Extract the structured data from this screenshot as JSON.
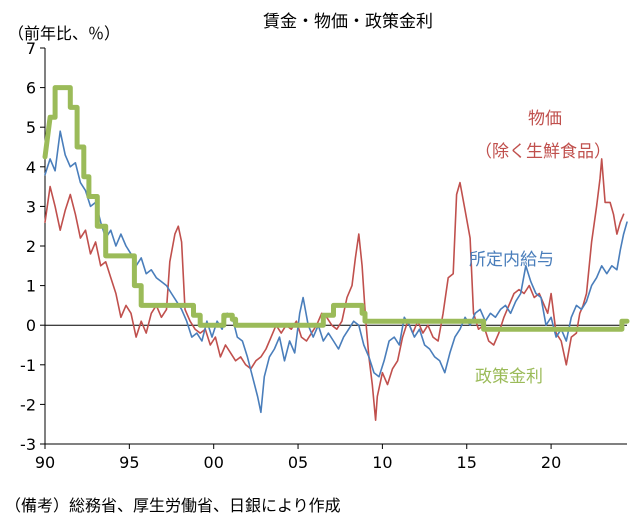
{
  "chart_data": {
    "type": "line",
    "title": "賃金・物価・政策金利",
    "y_unit_label": "（前年比、％）",
    "ylim": [
      -3,
      7
    ],
    "y_ticks": [
      "-3",
      "-2",
      "-1",
      "0",
      "1",
      "2",
      "3",
      "4",
      "5",
      "6",
      "7"
    ],
    "x_ticks": [
      {
        "x": 1990,
        "label": "90"
      },
      {
        "x": 1995,
        "label": "95"
      },
      {
        "x": 2000,
        "label": "00"
      },
      {
        "x": 2005,
        "label": "05"
      },
      {
        "x": 2010,
        "label": "10"
      },
      {
        "x": 2015,
        "label": "15"
      },
      {
        "x": 2020,
        "label": "20"
      }
    ],
    "xlim": [
      1990,
      2024.5
    ],
    "grid": false,
    "source": "（備考）総務省、厚生労働省、日銀により作成",
    "series": [
      {
        "name": "物価（除く生鮮食品）",
        "label_lines": [
          "物価",
          "（除く生鮮食品）"
        ],
        "color": "#c0504d",
        "stroke_width": 1.6,
        "points": [
          [
            1990.0,
            2.6
          ],
          [
            1990.3,
            3.5
          ],
          [
            1990.6,
            3.0
          ],
          [
            1990.9,
            2.4
          ],
          [
            1991.2,
            2.9
          ],
          [
            1991.5,
            3.3
          ],
          [
            1991.8,
            2.8
          ],
          [
            1992.1,
            2.2
          ],
          [
            1992.4,
            2.4
          ],
          [
            1992.7,
            1.8
          ],
          [
            1993.0,
            2.1
          ],
          [
            1993.3,
            1.5
          ],
          [
            1993.6,
            1.6
          ],
          [
            1993.9,
            1.2
          ],
          [
            1994.2,
            0.8
          ],
          [
            1994.5,
            0.2
          ],
          [
            1994.8,
            0.5
          ],
          [
            1995.1,
            0.3
          ],
          [
            1995.4,
            -0.3
          ],
          [
            1995.7,
            0.1
          ],
          [
            1996.0,
            -0.2
          ],
          [
            1996.3,
            0.3
          ],
          [
            1996.6,
            0.5
          ],
          [
            1996.9,
            0.2
          ],
          [
            1997.2,
            0.4
          ],
          [
            1997.4,
            1.6
          ],
          [
            1997.7,
            2.3
          ],
          [
            1997.9,
            2.5
          ],
          [
            1998.1,
            2.1
          ],
          [
            1998.3,
            0.4
          ],
          [
            1998.6,
            0.1
          ],
          [
            1998.9,
            -0.1
          ],
          [
            1999.2,
            -0.2
          ],
          [
            1999.5,
            -0.1
          ],
          [
            1999.8,
            -0.5
          ],
          [
            2000.1,
            -0.3
          ],
          [
            2000.4,
            -0.8
          ],
          [
            2000.7,
            -0.5
          ],
          [
            2001.0,
            -0.7
          ],
          [
            2001.3,
            -0.9
          ],
          [
            2001.6,
            -0.8
          ],
          [
            2001.9,
            -1.0
          ],
          [
            2002.2,
            -1.1
          ],
          [
            2002.5,
            -0.9
          ],
          [
            2002.8,
            -0.8
          ],
          [
            2003.1,
            -0.6
          ],
          [
            2003.4,
            -0.3
          ],
          [
            2003.7,
            0.0
          ],
          [
            2004.0,
            -0.2
          ],
          [
            2004.3,
            0.0
          ],
          [
            2004.6,
            -0.1
          ],
          [
            2004.9,
            0.1
          ],
          [
            2005.2,
            -0.3
          ],
          [
            2005.5,
            -0.4
          ],
          [
            2005.8,
            -0.2
          ],
          [
            2006.1,
            0.0
          ],
          [
            2006.4,
            0.3
          ],
          [
            2006.7,
            0.2
          ],
          [
            2007.0,
            0.0
          ],
          [
            2007.3,
            -0.1
          ],
          [
            2007.6,
            0.1
          ],
          [
            2007.9,
            0.7
          ],
          [
            2008.2,
            1.0
          ],
          [
            2008.4,
            1.7
          ],
          [
            2008.6,
            2.3
          ],
          [
            2008.8,
            1.5
          ],
          [
            2009.0,
            0.2
          ],
          [
            2009.2,
            -0.8
          ],
          [
            2009.4,
            -1.5
          ],
          [
            2009.6,
            -2.4
          ],
          [
            2009.7,
            -1.8
          ],
          [
            2010.0,
            -1.2
          ],
          [
            2010.3,
            -1.5
          ],
          [
            2010.6,
            -1.1
          ],
          [
            2010.9,
            -0.9
          ],
          [
            2011.2,
            -0.3
          ],
          [
            2011.5,
            0.1
          ],
          [
            2011.8,
            -0.2
          ],
          [
            2012.1,
            0.1
          ],
          [
            2012.4,
            -0.2
          ],
          [
            2012.7,
            0.0
          ],
          [
            2013.0,
            -0.3
          ],
          [
            2013.3,
            -0.4
          ],
          [
            2013.6,
            0.3
          ],
          [
            2013.9,
            1.2
          ],
          [
            2014.2,
            1.3
          ],
          [
            2014.4,
            3.3
          ],
          [
            2014.6,
            3.6
          ],
          [
            2014.9,
            2.9
          ],
          [
            2015.2,
            2.2
          ],
          [
            2015.4,
            0.3
          ],
          [
            2015.7,
            -0.1
          ],
          [
            2016.0,
            0.0
          ],
          [
            2016.3,
            -0.4
          ],
          [
            2016.6,
            -0.5
          ],
          [
            2016.9,
            -0.2
          ],
          [
            2017.2,
            0.2
          ],
          [
            2017.5,
            0.5
          ],
          [
            2017.8,
            0.8
          ],
          [
            2018.1,
            0.9
          ],
          [
            2018.4,
            0.8
          ],
          [
            2018.7,
            1.0
          ],
          [
            2019.0,
            0.7
          ],
          [
            2019.3,
            0.8
          ],
          [
            2019.6,
            0.5
          ],
          [
            2019.8,
            0.3
          ],
          [
            2020.0,
            0.8
          ],
          [
            2020.3,
            -0.2
          ],
          [
            2020.6,
            -0.4
          ],
          [
            2020.9,
            -1.0
          ],
          [
            2021.2,
            -0.3
          ],
          [
            2021.5,
            -0.2
          ],
          [
            2021.7,
            0.3
          ],
          [
            2021.9,
            0.5
          ],
          [
            2022.1,
            0.8
          ],
          [
            2022.4,
            2.1
          ],
          [
            2022.7,
            3.0
          ],
          [
            2022.9,
            3.7
          ],
          [
            2023.0,
            4.2
          ],
          [
            2023.2,
            3.1
          ],
          [
            2023.5,
            3.1
          ],
          [
            2023.7,
            2.8
          ],
          [
            2023.9,
            2.3
          ],
          [
            2024.1,
            2.6
          ],
          [
            2024.3,
            2.8
          ]
        ]
      },
      {
        "name": "所定内給与",
        "label_lines": [
          "所定内給与"
        ],
        "color": "#4a7ebb",
        "stroke_width": 1.6,
        "points": [
          [
            1990.0,
            3.8
          ],
          [
            1990.3,
            4.2
          ],
          [
            1990.6,
            3.9
          ],
          [
            1990.9,
            4.9
          ],
          [
            1991.2,
            4.3
          ],
          [
            1991.5,
            4.0
          ],
          [
            1991.8,
            4.1
          ],
          [
            1992.1,
            3.6
          ],
          [
            1992.4,
            3.4
          ],
          [
            1992.7,
            3.0
          ],
          [
            1993.0,
            3.1
          ],
          [
            1993.3,
            2.6
          ],
          [
            1993.6,
            2.2
          ],
          [
            1993.9,
            2.4
          ],
          [
            1994.2,
            2.0
          ],
          [
            1994.5,
            2.3
          ],
          [
            1994.8,
            2.0
          ],
          [
            1995.1,
            1.8
          ],
          [
            1995.4,
            1.5
          ],
          [
            1995.7,
            1.7
          ],
          [
            1996.0,
            1.3
          ],
          [
            1996.3,
            1.4
          ],
          [
            1996.6,
            1.2
          ],
          [
            1996.9,
            1.1
          ],
          [
            1997.2,
            1.0
          ],
          [
            1997.5,
            0.8
          ],
          [
            1997.8,
            0.6
          ],
          [
            1998.1,
            0.4
          ],
          [
            1998.4,
            0.1
          ],
          [
            1998.7,
            -0.3
          ],
          [
            1999.0,
            -0.2
          ],
          [
            1999.3,
            -0.4
          ],
          [
            1999.6,
            0.1
          ],
          [
            1999.9,
            -0.3
          ],
          [
            2000.2,
            0.1
          ],
          [
            2000.5,
            -0.1
          ],
          [
            2000.8,
            0.3
          ],
          [
            2001.1,
            0.2
          ],
          [
            2001.4,
            -0.3
          ],
          [
            2001.7,
            -0.4
          ],
          [
            2002.0,
            -0.8
          ],
          [
            2002.3,
            -1.3
          ],
          [
            2002.6,
            -1.8
          ],
          [
            2002.8,
            -2.2
          ],
          [
            2003.0,
            -1.3
          ],
          [
            2003.3,
            -0.8
          ],
          [
            2003.6,
            -0.6
          ],
          [
            2003.9,
            -0.3
          ],
          [
            2004.2,
            -0.9
          ],
          [
            2004.5,
            -0.4
          ],
          [
            2004.8,
            -0.7
          ],
          [
            2005.1,
            0.3
          ],
          [
            2005.3,
            0.7
          ],
          [
            2005.6,
            0.0
          ],
          [
            2005.9,
            -0.3
          ],
          [
            2006.2,
            0.0
          ],
          [
            2006.5,
            -0.4
          ],
          [
            2006.8,
            -0.2
          ],
          [
            2007.1,
            -0.4
          ],
          [
            2007.4,
            -0.6
          ],
          [
            2007.7,
            -0.3
          ],
          [
            2008.0,
            -0.1
          ],
          [
            2008.3,
            0.1
          ],
          [
            2008.6,
            0.0
          ],
          [
            2008.9,
            -0.5
          ],
          [
            2009.2,
            -0.8
          ],
          [
            2009.5,
            -1.2
          ],
          [
            2009.8,
            -1.3
          ],
          [
            2010.1,
            -0.9
          ],
          [
            2010.4,
            -0.4
          ],
          [
            2010.7,
            -0.3
          ],
          [
            2011.0,
            -0.5
          ],
          [
            2011.3,
            0.2
          ],
          [
            2011.6,
            0.0
          ],
          [
            2011.9,
            -0.3
          ],
          [
            2012.2,
            -0.1
          ],
          [
            2012.5,
            -0.5
          ],
          [
            2012.8,
            -0.6
          ],
          [
            2013.1,
            -0.8
          ],
          [
            2013.4,
            -0.9
          ],
          [
            2013.7,
            -1.2
          ],
          [
            2014.0,
            -0.7
          ],
          [
            2014.3,
            -0.3
          ],
          [
            2014.6,
            -0.1
          ],
          [
            2014.9,
            0.2
          ],
          [
            2015.2,
            0.0
          ],
          [
            2015.5,
            0.3
          ],
          [
            2015.8,
            0.4
          ],
          [
            2016.1,
            0.1
          ],
          [
            2016.4,
            0.3
          ],
          [
            2016.7,
            0.2
          ],
          [
            2017.0,
            0.4
          ],
          [
            2017.3,
            0.5
          ],
          [
            2017.6,
            0.3
          ],
          [
            2017.9,
            0.6
          ],
          [
            2018.2,
            0.8
          ],
          [
            2018.5,
            1.5
          ],
          [
            2018.8,
            1.1
          ],
          [
            2019.1,
            0.8
          ],
          [
            2019.4,
            0.7
          ],
          [
            2019.7,
            0.0
          ],
          [
            2020.0,
            0.2
          ],
          [
            2020.3,
            -0.3
          ],
          [
            2020.6,
            -0.1
          ],
          [
            2020.9,
            -0.4
          ],
          [
            2021.2,
            0.2
          ],
          [
            2021.5,
            0.5
          ],
          [
            2021.8,
            0.4
          ],
          [
            2022.1,
            0.6
          ],
          [
            2022.4,
            1.0
          ],
          [
            2022.7,
            1.2
          ],
          [
            2023.0,
            1.5
          ],
          [
            2023.3,
            1.3
          ],
          [
            2023.6,
            1.5
          ],
          [
            2023.9,
            1.4
          ],
          [
            2024.1,
            1.9
          ],
          [
            2024.3,
            2.3
          ],
          [
            2024.5,
            2.6
          ]
        ]
      },
      {
        "name": "政策金利",
        "label_lines": [
          "政策金利"
        ],
        "color": "#9bbb59",
        "stroke_width": 5,
        "points": [
          [
            1990.0,
            4.25
          ],
          [
            1990.3,
            5.25
          ],
          [
            1990.6,
            5.25
          ],
          [
            1990.6,
            6.0
          ],
          [
            1991.5,
            6.0
          ],
          [
            1991.5,
            5.5
          ],
          [
            1991.9,
            5.5
          ],
          [
            1991.9,
            4.5
          ],
          [
            1992.3,
            4.5
          ],
          [
            1992.3,
            3.75
          ],
          [
            1992.6,
            3.75
          ],
          [
            1992.6,
            3.25
          ],
          [
            1993.1,
            3.25
          ],
          [
            1993.1,
            2.5
          ],
          [
            1993.6,
            2.5
          ],
          [
            1993.6,
            1.75
          ],
          [
            1995.3,
            1.75
          ],
          [
            1995.3,
            1.0
          ],
          [
            1995.7,
            1.0
          ],
          [
            1995.7,
            0.5
          ],
          [
            1998.8,
            0.5
          ],
          [
            1998.8,
            0.25
          ],
          [
            1999.2,
            0.25
          ],
          [
            1999.2,
            0.0
          ],
          [
            2000.6,
            0.0
          ],
          [
            2000.6,
            0.25
          ],
          [
            2001.1,
            0.25
          ],
          [
            2001.1,
            0.15
          ],
          [
            2001.3,
            0.15
          ],
          [
            2001.3,
            0.0
          ],
          [
            2006.5,
            0.0
          ],
          [
            2006.5,
            0.25
          ],
          [
            2007.1,
            0.25
          ],
          [
            2007.1,
            0.5
          ],
          [
            2008.8,
            0.5
          ],
          [
            2008.8,
            0.3
          ],
          [
            2008.97,
            0.3
          ],
          [
            2008.97,
            0.1
          ],
          [
            2016.0,
            0.1
          ],
          [
            2016.0,
            -0.1
          ],
          [
            2024.2,
            -0.1
          ],
          [
            2024.2,
            0.1
          ],
          [
            2024.5,
            0.1
          ]
        ]
      }
    ]
  }
}
